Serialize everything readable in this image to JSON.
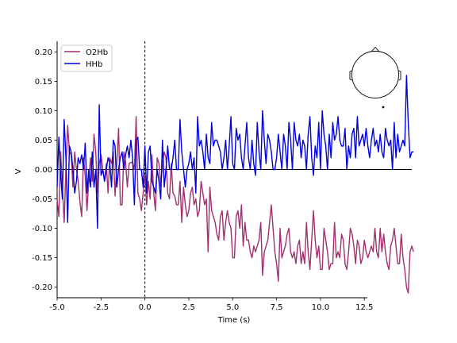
{
  "chart_data": {
    "type": "line",
    "title": "",
    "xlabel": "Time (s)",
    "ylabel": "V",
    "xlim": [
      -5.0,
      15.2
    ],
    "ylim": [
      -0.218,
      0.218
    ],
    "x_ticks": [
      "-5.0",
      "-2.5",
      "0.0",
      "2.5",
      "5.0",
      "7.5",
      "10.0",
      "12.5"
    ],
    "x_tick_values": [
      -5.0,
      -2.5,
      0.0,
      2.5,
      5.0,
      7.5,
      10.0,
      12.5
    ],
    "y_ticks": [
      "0.20",
      "0.15",
      "0.10",
      "0.05",
      "0.00",
      "-0.05",
      "-0.10",
      "-0.15",
      "-0.20"
    ],
    "y_tick_values": [
      0.2,
      0.15,
      0.1,
      0.05,
      0.0,
      -0.05,
      -0.1,
      -0.15,
      -0.2
    ],
    "grid": false,
    "legend_position": "upper-left",
    "event_line_x": 0.0,
    "zero_line_y": 0.0,
    "sensor_inset": "head outline with single sensor dot",
    "series": [
      {
        "name": "O2Hb",
        "color": "#a0306e",
        "x_start": -5.0,
        "x_step": 0.1,
        "values": [
          -0.05,
          -0.08,
          0.03,
          -0.03,
          -0.09,
          0.0,
          0.075,
          0.03,
          0.025,
          -0.03,
          0.03,
          0.0,
          -0.02,
          -0.055,
          -0.08,
          0.02,
          -0.01,
          -0.07,
          -0.02,
          0.02,
          -0.02,
          0.06,
          0.03,
          -0.04,
          0.01,
          0.025,
          0.0,
          -0.02,
          0.01,
          -0.04,
          0.02,
          0.01,
          0.03,
          -0.045,
          0.01,
          0.07,
          -0.06,
          -0.06,
          0.03,
          0.012,
          -0.03,
          0.01,
          0.012,
          0.012,
          0.0,
          0.09,
          -0.04,
          -0.05,
          -0.07,
          -0.04,
          -0.01,
          -0.06,
          -0.02,
          -0.05,
          0.025,
          -0.04,
          -0.07,
          0.02,
          0.01,
          -0.03,
          0.01,
          0.03,
          0.02,
          -0.04,
          -0.05,
          0.01,
          -0.04,
          -0.045,
          -0.06,
          -0.06,
          -0.02,
          -0.09,
          -0.03,
          -0.06,
          -0.08,
          -0.07,
          -0.04,
          -0.03,
          -0.06,
          -0.05,
          -0.08,
          -0.07,
          -0.02,
          -0.04,
          -0.06,
          -0.05,
          -0.14,
          -0.03,
          -0.07,
          -0.08,
          -0.09,
          -0.11,
          -0.12,
          -0.08,
          -0.07,
          -0.12,
          -0.09,
          -0.07,
          -0.09,
          -0.1,
          -0.15,
          -0.15,
          -0.08,
          -0.07,
          -0.1,
          -0.06,
          -0.13,
          -0.09,
          -0.12,
          -0.12,
          -0.14,
          -0.15,
          -0.13,
          -0.14,
          -0.13,
          -0.12,
          -0.09,
          -0.18,
          -0.14,
          -0.13,
          -0.12,
          -0.09,
          -0.06,
          -0.1,
          -0.14,
          -0.16,
          -0.19,
          -0.1,
          -0.15,
          -0.14,
          -0.13,
          -0.11,
          -0.1,
          -0.14,
          -0.15,
          -0.14,
          -0.16,
          -0.13,
          -0.12,
          -0.16,
          -0.14,
          -0.16,
          -0.09,
          -0.14,
          -0.17,
          -0.12,
          -0.07,
          -0.12,
          -0.15,
          -0.13,
          -0.17,
          -0.17,
          -0.1,
          -0.12,
          -0.14,
          -0.17,
          -0.16,
          -0.16,
          -0.09,
          -0.15,
          -0.14,
          -0.15,
          -0.11,
          -0.12,
          -0.16,
          -0.17,
          -0.14,
          -0.1,
          -0.11,
          -0.13,
          -0.16,
          -0.12,
          -0.13,
          -0.16,
          -0.15,
          -0.12,
          -0.14,
          -0.15,
          -0.14,
          -0.13,
          -0.14,
          -0.1,
          -0.14,
          -0.15,
          -0.1,
          -0.14,
          -0.11,
          -0.14,
          -0.16,
          -0.17,
          -0.13,
          -0.12,
          -0.1,
          -0.13,
          -0.16,
          -0.16,
          -0.11,
          -0.15,
          -0.17,
          -0.2,
          -0.21,
          -0.14,
          -0.13,
          -0.14
        ]
      },
      {
        "name": "HHb",
        "color": "#0000dd",
        "x_start": -5.0,
        "x_step": 0.1,
        "values": [
          -0.03,
          0.055,
          -0.01,
          -0.05,
          0.085,
          0.02,
          -0.09,
          0.04,
          0.03,
          0.0,
          -0.04,
          -0.02,
          0.02,
          0.01,
          0.025,
          0.0,
          0.045,
          -0.04,
          0.0,
          -0.03,
          0.03,
          -0.03,
          0.0,
          -0.1,
          0.11,
          -0.01,
          0.0,
          -0.02,
          0.0,
          0.02,
          0.01,
          -0.03,
          0.05,
          0.04,
          -0.03,
          0.0,
          0.02,
          0.03,
          0.0,
          0.025,
          0.04,
          0.02,
          0.05,
          0.02,
          -0.06,
          0.05,
          0.055,
          0.0,
          0.0,
          -0.03,
          0.04,
          -0.04,
          0.03,
          0.04,
          -0.02,
          -0.03,
          -0.04,
          0.0,
          -0.02,
          -0.05,
          0.05,
          -0.03,
          0.0,
          0.04,
          0.0,
          0.0,
          0.02,
          0.05,
          0.0,
          0.0,
          0.085,
          0.03,
          0.0,
          -0.03,
          0.0,
          0.01,
          0.03,
          0.0,
          0.02,
          -0.04,
          0.09,
          0.04,
          0.05,
          0.03,
          0.0,
          0.06,
          0.02,
          0.01,
          0.08,
          0.04,
          0.05,
          0.05,
          0.04,
          0.03,
          0.0,
          0.02,
          0.05,
          0.0,
          0.04,
          0.09,
          0.01,
          0.0,
          0.07,
          0.05,
          0.06,
          0.02,
          0.0,
          0.04,
          0.08,
          0.02,
          0.0,
          0.05,
          0.01,
          -0.01,
          0.08,
          0.03,
          0.0,
          0.1,
          0.05,
          0.01,
          0.06,
          0.05,
          0.03,
          0.0,
          0.0,
          0.02,
          0.06,
          0.03,
          0.0,
          0.06,
          0.04,
          0.0,
          0.08,
          0.05,
          0.0,
          0.08,
          0.05,
          0.04,
          0.06,
          0.02,
          0.05,
          0.04,
          0.0,
          0.06,
          0.09,
          0.02,
          -0.01,
          0.04,
          0.02,
          0.08,
          0.0,
          0.1,
          0.06,
          0.04,
          0.0,
          0.06,
          0.02,
          0.08,
          0.05,
          0.06,
          0.09,
          0.05,
          0.04,
          0.04,
          0.07,
          0.0,
          0.04,
          0.02,
          0.06,
          0.07,
          0.02,
          0.09,
          0.04,
          0.05,
          0.06,
          0.04,
          0.07,
          0.04,
          0.02,
          0.05,
          0.07,
          0.04,
          0.05,
          0.03,
          0.06,
          0.03,
          0.02,
          0.07,
          0.05,
          0.04,
          0.05,
          0.0,
          0.08,
          0.02,
          0.06,
          0.03,
          0.04,
          0.05,
          0.04,
          0.16,
          0.08,
          0.02,
          0.03,
          0.03
        ]
      }
    ]
  }
}
